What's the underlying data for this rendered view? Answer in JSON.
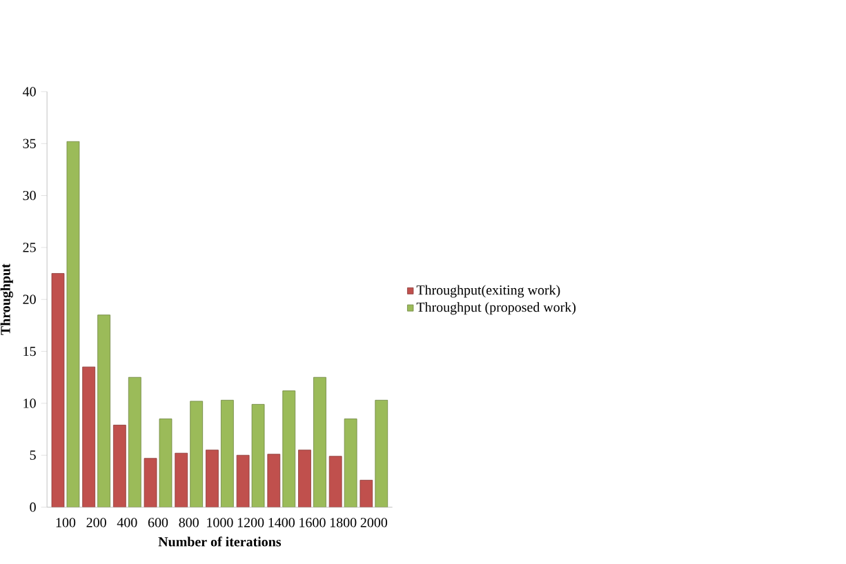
{
  "chart_data": {
    "type": "bar",
    "xlabel": "Number of iterations",
    "ylabel": "Throughput",
    "categories": [
      "100",
      "200",
      "400",
      "600",
      "800",
      "1000",
      "1200",
      "1400",
      "1600",
      "1800",
      "2000"
    ],
    "series": [
      {
        "name": "Throughput(exiting  work)",
        "color": "#c0504d",
        "values": [
          22.5,
          13.5,
          7.9,
          4.7,
          5.2,
          5.5,
          5.0,
          5.1,
          5.5,
          4.9,
          2.6
        ]
      },
      {
        "name": "Throughput (proposed work)",
        "color": "#9bbb59",
        "values": [
          35.2,
          18.5,
          12.5,
          8.5,
          10.2,
          10.3,
          9.9,
          11.2,
          12.5,
          8.5,
          10.3
        ]
      }
    ],
    "ylim": [
      0,
      40
    ],
    "yticks": [
      0,
      5,
      10,
      15,
      20,
      25,
      30,
      35,
      40
    ],
    "legend": "right",
    "grid": false
  }
}
